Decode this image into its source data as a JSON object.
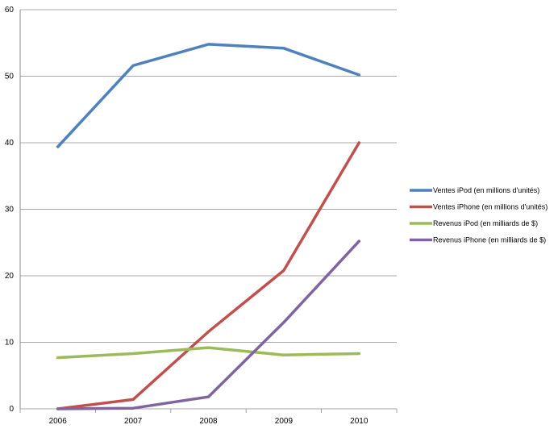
{
  "chart_data": {
    "type": "line",
    "title": "",
    "xlabel": "",
    "ylabel": "",
    "categories": [
      "2006",
      "2007",
      "2008",
      "2009",
      "2010"
    ],
    "ylim": [
      0,
      60
    ],
    "yticks": [
      0,
      10,
      20,
      30,
      40,
      50,
      60
    ],
    "grid": "horizontal",
    "legend_position": "right",
    "series": [
      {
        "name": "Ventes iPod (en millions d'unités)",
        "color": "#4f81bd",
        "values": [
          39.4,
          51.6,
          54.8,
          54.2,
          50.2
        ]
      },
      {
        "name": "Ventes iPhone (en millions d'unités)",
        "color": "#c0504d",
        "values": [
          0,
          1.4,
          11.6,
          20.8,
          40
        ]
      },
      {
        "name": "Revenus iPod (en milliards de $)",
        "color": "#9bbb59",
        "values": [
          7.7,
          8.3,
          9.2,
          8.1,
          8.3
        ]
      },
      {
        "name": "Revenus iPhone (en milliards de $)",
        "color": "#8064a2",
        "values": [
          0,
          0.1,
          1.8,
          13.0,
          25.2
        ]
      }
    ]
  }
}
